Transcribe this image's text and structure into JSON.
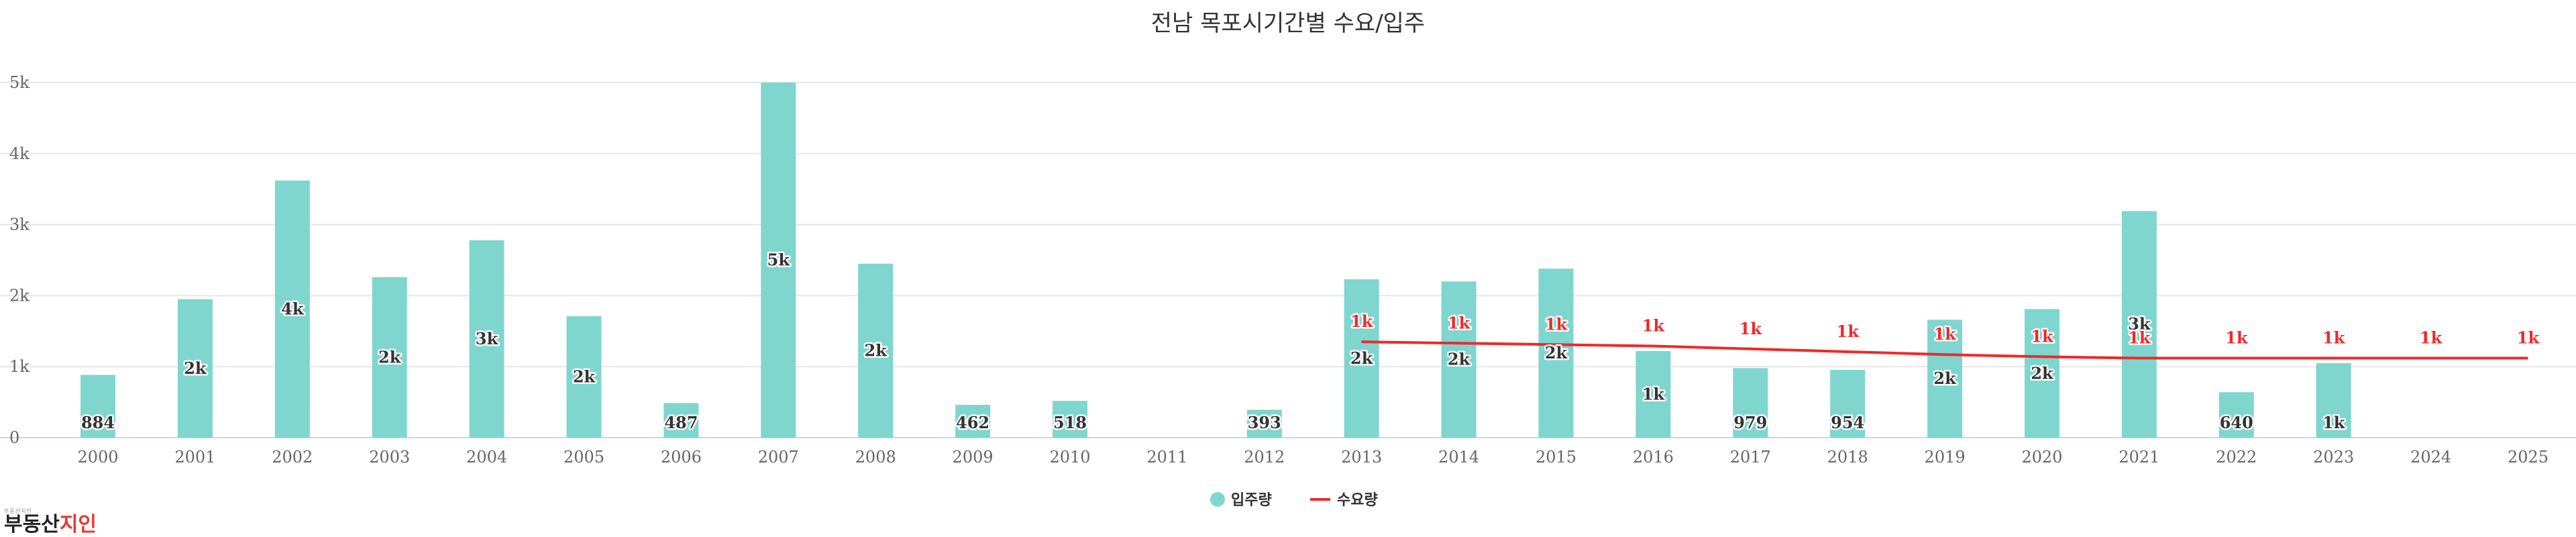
{
  "chart_data": {
    "type": "bar",
    "title": "전남 목포시기간별 수요/입주",
    "categories": [
      "2000",
      "2001",
      "2002",
      "2003",
      "2004",
      "2005",
      "2006",
      "2007",
      "2008",
      "2009",
      "2010",
      "2011",
      "2012",
      "2013",
      "2014",
      "2015",
      "2016",
      "2017",
      "2018",
      "2019",
      "2020",
      "2021",
      "2022",
      "2023",
      "2024",
      "2025"
    ],
    "ylim": [
      0,
      5000
    ],
    "yticks": [
      0,
      1000,
      2000,
      3000,
      4000,
      5000
    ],
    "ytick_labels": [
      "0",
      "1k",
      "2k",
      "3k",
      "4k",
      "5k"
    ],
    "grid": true,
    "legend_position": "bottom-center",
    "series": [
      {
        "name": "입주량",
        "type": "bar",
        "color": "#7fd6cf",
        "values": [
          884,
          1950,
          3620,
          2260,
          2780,
          1710,
          487,
          5000,
          2450,
          462,
          518,
          null,
          393,
          2230,
          2200,
          2380,
          1220,
          979,
          954,
          1660,
          1810,
          3190,
          640,
          1050,
          null,
          null
        ],
        "labels": [
          "884",
          "2k",
          "4k",
          "2k",
          "3k",
          "2k",
          "487",
          "5k",
          "2k",
          "462",
          "518",
          "",
          "393",
          "2k",
          "2k",
          "2k",
          "1k",
          "979",
          "954",
          "2k",
          "2k",
          "3k",
          "640",
          "1k",
          "",
          ""
        ]
      },
      {
        "name": "수요량",
        "type": "line",
        "color": "#ee2a2a",
        "values": [
          null,
          null,
          null,
          null,
          null,
          null,
          null,
          null,
          null,
          null,
          null,
          null,
          null,
          1350,
          1330,
          1310,
          1290,
          1250,
          1210,
          1170,
          1140,
          1120,
          1120,
          1120,
          1120,
          1120
        ],
        "labels": [
          "",
          "",
          "",
          "",
          "",
          "",
          "",
          "",
          "",
          "",
          "",
          "",
          "",
          "1k",
          "1k",
          "1k",
          "1k",
          "1k",
          "1k",
          "1k",
          "1k",
          "1k",
          "1k",
          "1k",
          "1k",
          "1k"
        ]
      }
    ]
  },
  "logo": {
    "small_text": "부동산지인",
    "main_prefix": "부동산",
    "main_accent": "지인"
  }
}
